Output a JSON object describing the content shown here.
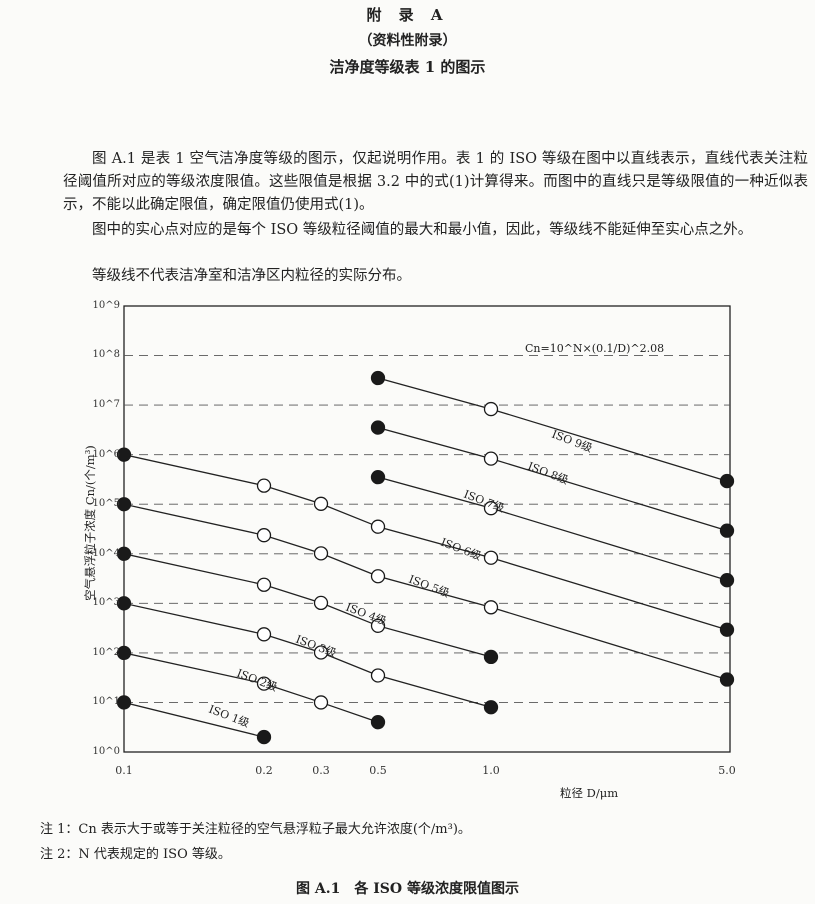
{
  "header": {
    "appendix": "附 录 A",
    "nature": "（资料性附录）",
    "title": "洁净度等级表 1 的图示"
  },
  "paragraphs": [
    "图 A.1 是表 1 空气洁净度等级的图示，仅起说明作用。表 1 的 ISO 等级在图中以直线表示，直线代表关注粒径阈值所对应的等级浓度限值。这些限值是根据 3.2 中的式(1)计算得来。而图中的直线只是等级限值的一种近似表示，不能以此确定限值，确定限值仍使用式(1)。",
    "图中的实心点对应的是每个 ISO 等级粒径阈值的最大和最小值，因此，等级线不能延伸至实心点之外。",
    "等级线不代表洁净室和洁净区内粒径的实际分布。"
  ],
  "chart_data": {
    "type": "line",
    "xlabel": "粒径 D/μm",
    "ylabel": "空气悬浮粒子浓度 Cn/(个/m³)",
    "annotation": "Cn=10^N×(0.1/D)^2.08",
    "x_ticks": [
      "0.1",
      "0.2",
      "0.3",
      "0.5",
      "1.0",
      "5.0"
    ],
    "y_ticks": [
      "10^0",
      "10^1",
      "10^2",
      "10^3",
      "10^4",
      "10^5",
      "10^6",
      "10^7",
      "10^8",
      "10^9"
    ],
    "y_scale": "log",
    "ylim": [
      1,
      1000000000
    ],
    "xlim": [
      0.1,
      5.0
    ],
    "grid": "dashed horizontal at each decade",
    "marker_note": "filled markers at line endpoints, open markers at intermediate points",
    "series": [
      {
        "name": "ISO 1级",
        "x": [
          0.1,
          0.2
        ],
        "y": [
          10,
          2
        ]
      },
      {
        "name": "ISO 2级",
        "x": [
          0.1,
          0.2,
          0.3,
          0.5
        ],
        "y": [
          100,
          24,
          10,
          4
        ]
      },
      {
        "name": "ISO 3级",
        "x": [
          0.1,
          0.2,
          0.3,
          0.5,
          1.0
        ],
        "y": [
          1000,
          237,
          102,
          35,
          8
        ]
      },
      {
        "name": "ISO 4级",
        "x": [
          0.1,
          0.2,
          0.3,
          0.5,
          1.0
        ],
        "y": [
          10000,
          2370,
          1020,
          352,
          83
        ]
      },
      {
        "name": "ISO 5级",
        "x": [
          0.1,
          0.2,
          0.3,
          0.5,
          1.0,
          5.0
        ],
        "y": [
          100000,
          23700,
          10200,
          3520,
          832,
          29
        ]
      },
      {
        "name": "ISO 6级",
        "x": [
          0.1,
          0.2,
          0.3,
          0.5,
          1.0,
          5.0
        ],
        "y": [
          1000000,
          237000,
          102000,
          35200,
          8320,
          293
        ]
      },
      {
        "name": "ISO 7级",
        "x": [
          0.5,
          1.0,
          5.0
        ],
        "y": [
          352000,
          83200,
          2930
        ]
      },
      {
        "name": "ISO 8级",
        "x": [
          0.5,
          1.0,
          5.0
        ],
        "y": [
          3520000,
          832000,
          29300
        ]
      },
      {
        "name": "ISO 9级",
        "x": [
          0.5,
          1.0,
          5.0
        ],
        "y": [
          35200000,
          8320000,
          293000
        ]
      }
    ]
  },
  "notes": [
    "注 1：Cn 表示大于或等于关注粒径的空气悬浮粒子最大允许浓度(个/m³)。",
    "注 2：N 代表规定的 ISO 等级。"
  ],
  "caption": "图 A.1　各 ISO 等级浓度限值图示"
}
